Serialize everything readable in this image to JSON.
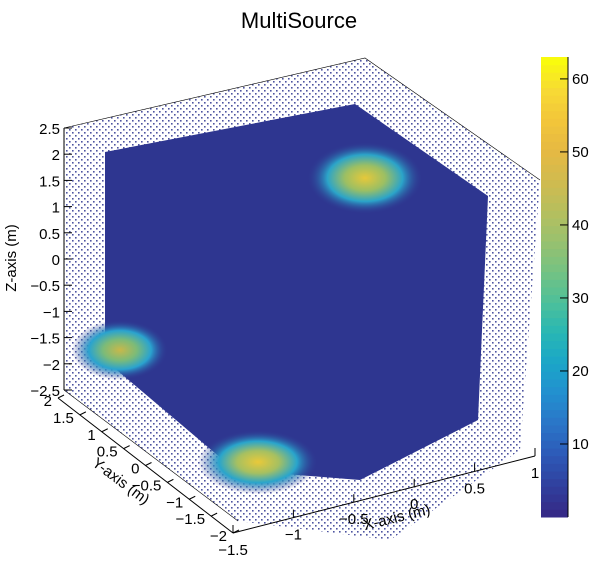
{
  "chart_data": {
    "type": "scatter",
    "subtype": "3d-box-density",
    "title": "MultiSource",
    "x_axis": {
      "label": "X-axis (m)",
      "range": [
        -1.5,
        1
      ],
      "ticks": [
        "-1.5",
        "-1",
        "-0.5",
        "0",
        "0.5",
        "1"
      ]
    },
    "y_axis": {
      "label": "Y-axis (m)",
      "range": [
        -2,
        2
      ],
      "ticks": [
        "-2",
        "-1.5",
        "-1",
        "-0.5",
        "0",
        "0.5",
        "1",
        "1.5",
        "2"
      ]
    },
    "z_axis": {
      "label": "Z-axis (m)",
      "range": [
        -2.5,
        2.5
      ],
      "ticks": [
        "-2.5",
        "-2",
        "-1.5",
        "-1",
        "-0.5",
        "0",
        "0.5",
        "1",
        "1.5",
        "2",
        "2.5"
      ]
    },
    "colorbar": {
      "range": [
        0,
        63
      ],
      "ticks": [
        "10",
        "20",
        "30",
        "40",
        "50",
        "60"
      ]
    },
    "background_density": 2,
    "hotspots": [
      {
        "x": 0.5,
        "y": 1.5,
        "z": 1.6,
        "peak": 60
      },
      {
        "x": -1.5,
        "y": 0.5,
        "z": -1.8,
        "peak": 45
      },
      {
        "x": -0.8,
        "y": -1.5,
        "z": -2.3,
        "peak": 62
      }
    ],
    "grid": false,
    "legend": "none"
  }
}
